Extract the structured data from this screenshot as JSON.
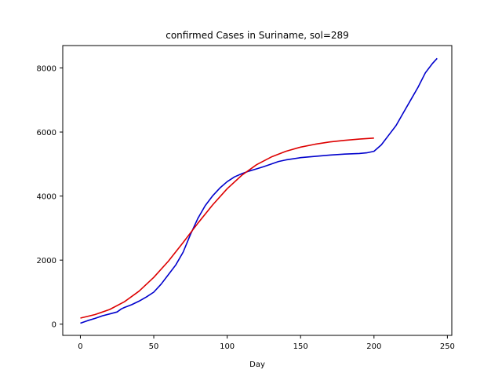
{
  "chart_data": {
    "type": "line",
    "title": "confirmed Cases in Suriname, sol=289",
    "xlabel": "Day",
    "ylabel": "",
    "xlim": [
      -12,
      253
    ],
    "ylim": [
      -350,
      8700
    ],
    "xticks": [
      0,
      50,
      100,
      150,
      200,
      250
    ],
    "yticks": [
      0,
      2000,
      4000,
      6000,
      8000
    ],
    "grid": false,
    "series": [
      {
        "color": "#0000cc",
        "x": [
          0,
          5,
          10,
          15,
          20,
          25,
          28,
          30,
          35,
          40,
          45,
          50,
          55,
          60,
          65,
          70,
          75,
          80,
          85,
          90,
          95,
          100,
          105,
          110,
          115,
          120,
          125,
          130,
          135,
          140,
          150,
          160,
          170,
          180,
          190,
          195,
          200,
          205,
          210,
          215,
          220,
          225,
          230,
          235,
          240,
          243
        ],
        "y": [
          30,
          110,
          180,
          260,
          320,
          380,
          480,
          520,
          610,
          720,
          850,
          1000,
          1250,
          1550,
          1850,
          2250,
          2800,
          3300,
          3700,
          4000,
          4250,
          4450,
          4600,
          4700,
          4780,
          4850,
          4920,
          5000,
          5080,
          5130,
          5200,
          5240,
          5280,
          5310,
          5330,
          5350,
          5400,
          5600,
          5900,
          6200,
          6600,
          7000,
          7400,
          7850,
          8150,
          8300
        ]
      },
      {
        "color": "#dd0000",
        "x": [
          0,
          10,
          20,
          30,
          40,
          50,
          60,
          70,
          80,
          90,
          100,
          110,
          120,
          130,
          140,
          150,
          160,
          170,
          180,
          190,
          200
        ],
        "y": [
          190,
          300,
          460,
          700,
          1030,
          1460,
          1970,
          2550,
          3150,
          3720,
          4230,
          4650,
          4980,
          5220,
          5400,
          5530,
          5620,
          5690,
          5740,
          5780,
          5810
        ]
      }
    ]
  }
}
